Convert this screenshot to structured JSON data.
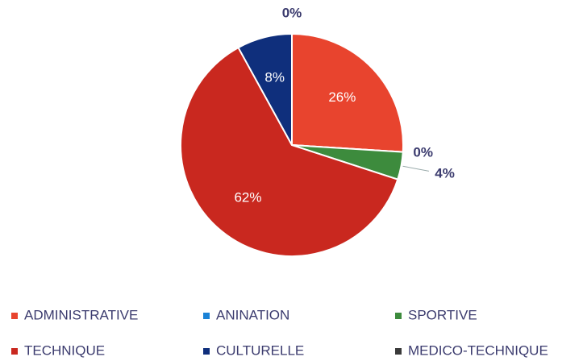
{
  "chart_data": {
    "type": "pie",
    "categories": [
      "ADMINISTRATIVE",
      "ANINATION",
      "SPORTIVE",
      "TECHNIQUE",
      "CULTURELLE",
      "MEDICO-TECHNIQUE"
    ],
    "values": [
      26,
      0,
      4,
      62,
      8,
      0
    ],
    "value_labels": [
      "26%",
      "0%",
      "4%",
      "62%",
      "8%",
      "0%"
    ],
    "colors": [
      "#e8442e",
      "#1b82d6",
      "#3d8b3d",
      "#c9281f",
      "#0f2f7c",
      "#3a3a3a"
    ],
    "legend": "bottom"
  }
}
